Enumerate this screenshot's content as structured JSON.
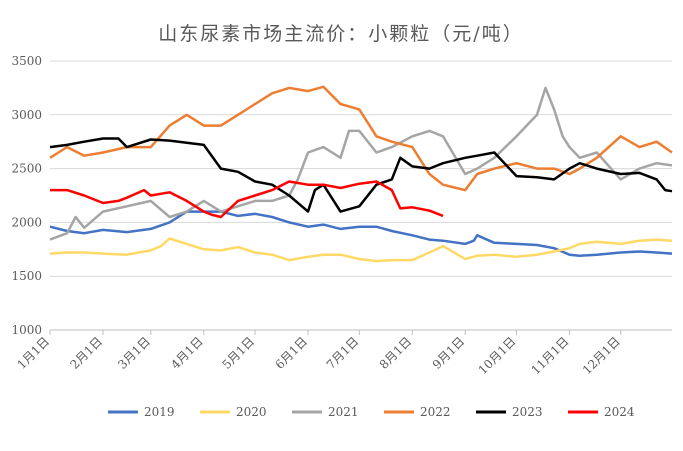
{
  "chart_data": {
    "type": "line",
    "title": "山东尿素市场主流价：小颗粒（元/吨）",
    "ylim": [
      1000,
      3500
    ],
    "yticks": [
      1000,
      1500,
      2000,
      2500,
      3000,
      3500
    ],
    "x_ticks": [
      "1月1日",
      "2月1日",
      "3月1日",
      "4月1日",
      "5月1日",
      "6月1日",
      "7月1日",
      "8月1日",
      "9月1日",
      "10月1日",
      "11月1日",
      "12月1日"
    ],
    "x_tick_days": [
      0,
      31,
      59,
      90,
      120,
      151,
      181,
      212,
      243,
      273,
      304,
      334
    ],
    "x_max_day": 364,
    "grid": true,
    "legend_position": "bottom",
    "series": [
      {
        "name": "2019",
        "color": "#4472C4",
        "x": [
          0,
          10,
          20,
          31,
          45,
          59,
          70,
          80,
          90,
          100,
          110,
          120,
          130,
          140,
          151,
          160,
          170,
          181,
          191,
          200,
          212,
          222,
          230,
          243,
          248,
          250,
          260,
          273,
          285,
          295,
          304,
          310,
          320,
          334,
          345,
          355,
          364
        ],
        "y": [
          1960,
          1920,
          1900,
          1930,
          1910,
          1940,
          2000,
          2100,
          2100,
          2100,
          2060,
          2080,
          2050,
          2000,
          1960,
          1980,
          1940,
          1960,
          1960,
          1920,
          1880,
          1840,
          1830,
          1800,
          1830,
          1880,
          1810,
          1800,
          1790,
          1760,
          1700,
          1690,
          1700,
          1720,
          1730,
          1720,
          1710
        ]
      },
      {
        "name": "2020",
        "color": "#FFD966",
        "x": [
          0,
          10,
          20,
          31,
          45,
          59,
          65,
          70,
          80,
          90,
          100,
          110,
          120,
          130,
          140,
          151,
          160,
          170,
          181,
          191,
          200,
          212,
          222,
          230,
          243,
          250,
          260,
          273,
          285,
          295,
          304,
          310,
          320,
          334,
          345,
          355,
          364
        ],
        "y": [
          1710,
          1720,
          1720,
          1710,
          1700,
          1740,
          1780,
          1850,
          1800,
          1750,
          1740,
          1770,
          1720,
          1700,
          1650,
          1680,
          1700,
          1700,
          1660,
          1640,
          1650,
          1650,
          1720,
          1780,
          1660,
          1690,
          1700,
          1680,
          1700,
          1730,
          1760,
          1800,
          1820,
          1800,
          1830,
          1840,
          1830
        ]
      },
      {
        "name": "2021",
        "color": "#A5A5A5",
        "x": [
          0,
          10,
          15,
          20,
          31,
          45,
          59,
          70,
          80,
          90,
          100,
          110,
          120,
          130,
          140,
          145,
          151,
          160,
          170,
          175,
          181,
          191,
          200,
          212,
          222,
          230,
          243,
          250,
          260,
          273,
          285,
          290,
          295,
          300,
          304,
          310,
          320,
          334,
          345,
          355,
          364
        ],
        "y": [
          1840,
          1900,
          2050,
          1950,
          2100,
          2150,
          2200,
          2050,
          2100,
          2200,
          2100,
          2150,
          2200,
          2200,
          2250,
          2400,
          2650,
          2700,
          2600,
          2850,
          2850,
          2650,
          2700,
          2800,
          2850,
          2800,
          2450,
          2500,
          2600,
          2800,
          3000,
          3250,
          3050,
          2800,
          2700,
          2600,
          2650,
          2400,
          2500,
          2550,
          2530
        ]
      },
      {
        "name": "2022",
        "color": "#ED7D31",
        "x": [
          0,
          5,
          10,
          20,
          31,
          45,
          59,
          70,
          80,
          90,
          100,
          110,
          120,
          130,
          140,
          151,
          160,
          170,
          181,
          191,
          200,
          212,
          222,
          230,
          243,
          250,
          260,
          273,
          285,
          295,
          304,
          310,
          320,
          334,
          345,
          355,
          364
        ],
        "y": [
          2600,
          2650,
          2700,
          2620,
          2650,
          2700,
          2700,
          2900,
          3000,
          2900,
          2900,
          3000,
          3100,
          3200,
          3250,
          3220,
          3260,
          3100,
          3050,
          2800,
          2750,
          2700,
          2450,
          2350,
          2300,
          2450,
          2500,
          2550,
          2500,
          2500,
          2450,
          2500,
          2600,
          2800,
          2700,
          2750,
          2650
        ]
      },
      {
        "name": "2023",
        "color": "#000000",
        "x": [
          0,
          10,
          20,
          31,
          40,
          45,
          59,
          70,
          80,
          90,
          100,
          110,
          120,
          130,
          140,
          151,
          155,
          160,
          170,
          181,
          191,
          200,
          205,
          212,
          222,
          230,
          243,
          250,
          260,
          273,
          285,
          295,
          304,
          310,
          320,
          334,
          345,
          355,
          360,
          364
        ],
        "y": [
          2700,
          2720,
          2750,
          2780,
          2780,
          2700,
          2770,
          2760,
          2740,
          2720,
          2500,
          2470,
          2380,
          2350,
          2250,
          2100,
          2300,
          2350,
          2100,
          2150,
          2350,
          2400,
          2600,
          2520,
          2500,
          2550,
          2600,
          2620,
          2650,
          2430,
          2420,
          2400,
          2500,
          2550,
          2500,
          2450,
          2460,
          2400,
          2300,
          2290
        ]
      },
      {
        "name": "2024",
        "color": "#FF0000",
        "x": [
          0,
          10,
          20,
          31,
          40,
          45,
          55,
          59,
          70,
          80,
          90,
          95,
          100,
          110,
          120,
          130,
          140,
          151,
          160,
          170,
          181,
          191,
          200,
          205,
          212,
          222,
          230
        ],
        "y": [
          2300,
          2300,
          2250,
          2180,
          2200,
          2230,
          2300,
          2250,
          2280,
          2200,
          2100,
          2070,
          2050,
          2200,
          2250,
          2300,
          2380,
          2350,
          2350,
          2320,
          2360,
          2380,
          2300,
          2130,
          2140,
          2110,
          2060
        ]
      }
    ]
  }
}
